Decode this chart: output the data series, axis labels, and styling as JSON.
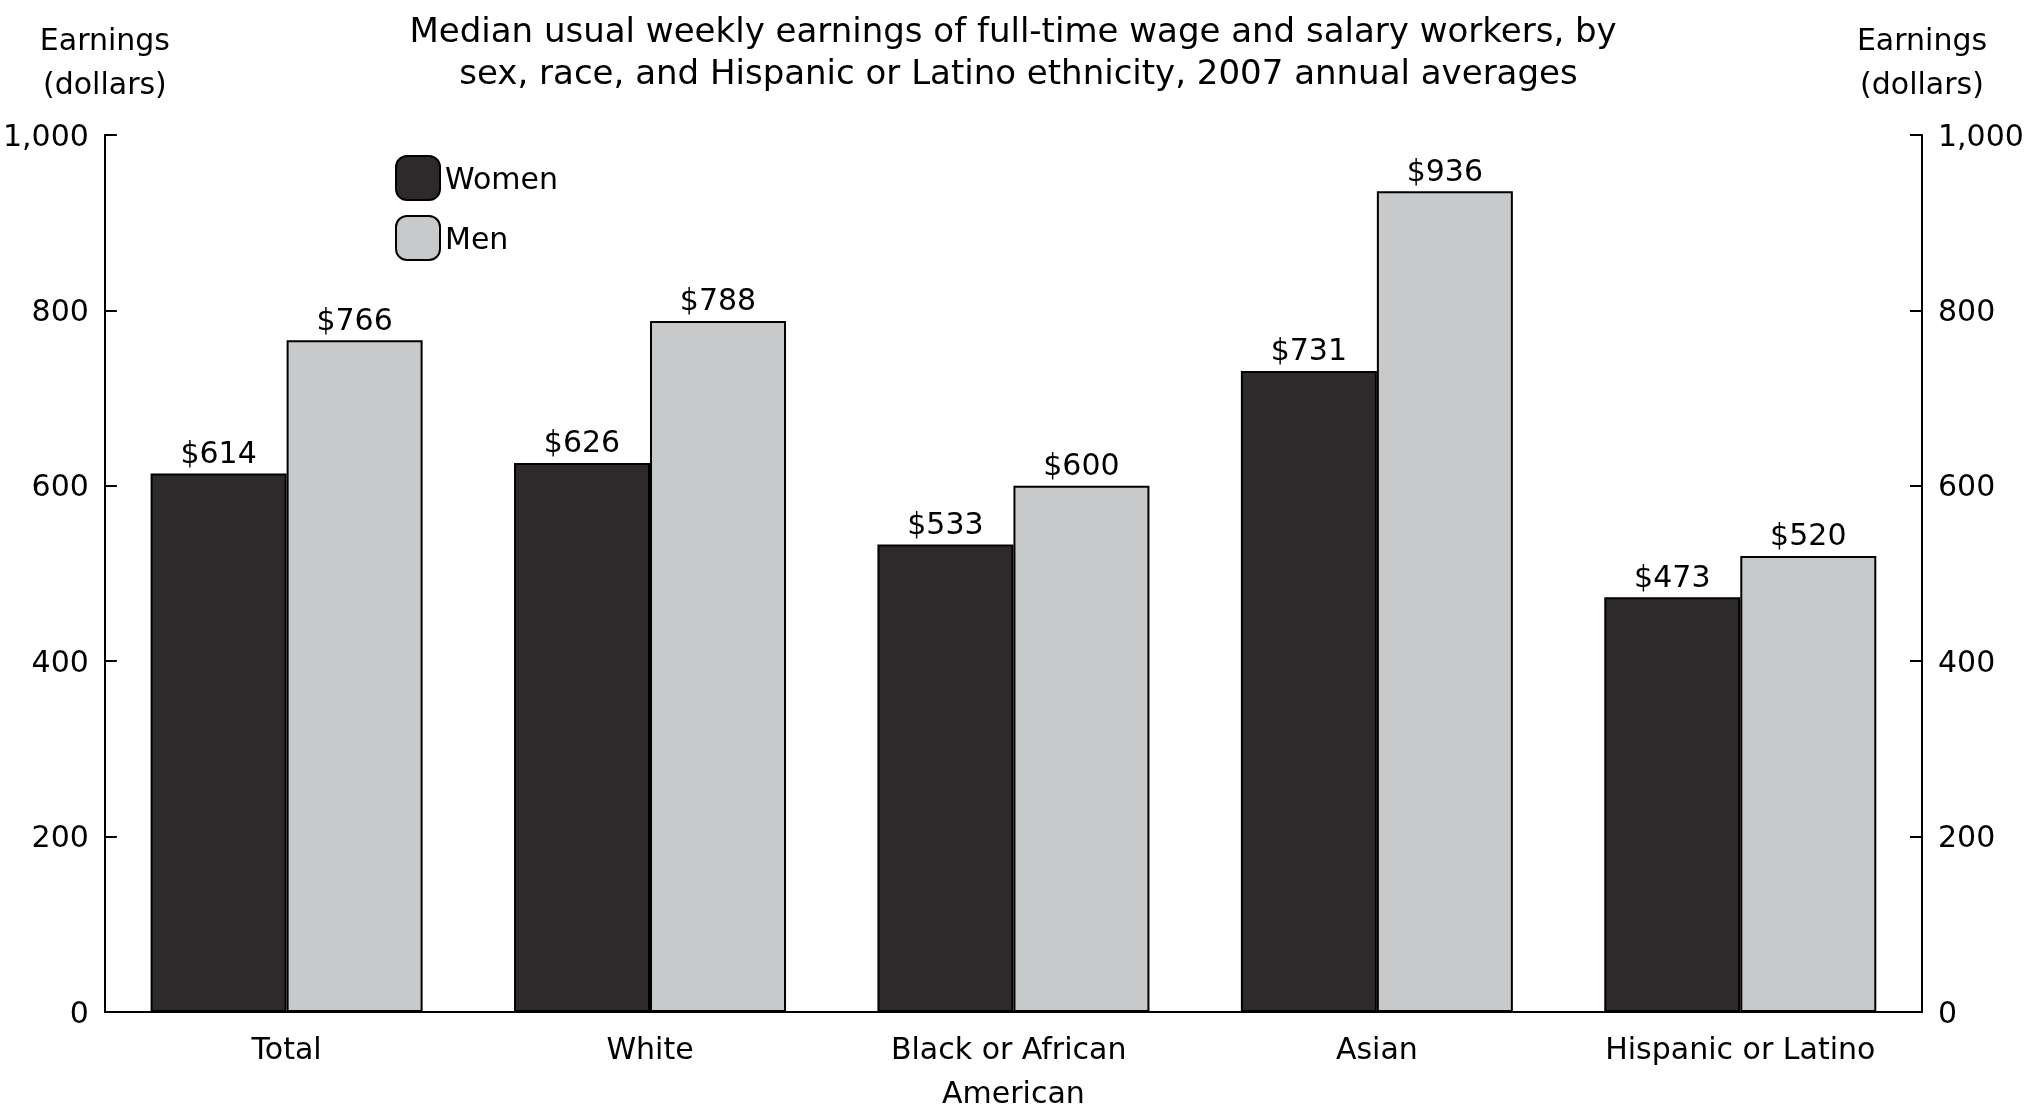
{
  "chart_data": {
    "type": "bar",
    "title": "Median usual weekly earnings of full-time wage and salary workers, by sex, race, and Hispanic or Latino ethnicity, 2007 annual averages",
    "ylabel": "Earnings\n(dollars)",
    "y2label": "Earnings\n(dollars)",
    "categories": [
      "Total",
      "White",
      "Black or African American",
      "Asian",
      "Hispanic or Latino"
    ],
    "series": [
      {
        "name": "Women",
        "color": "#2e2a2b",
        "values": [
          614,
          626,
          533,
          731,
          473
        ],
        "value_labels": [
          "$614",
          "$626",
          "$533",
          "$731",
          "$473"
        ]
      },
      {
        "name": "Men",
        "color": "#c8c9cb",
        "values": [
          766,
          788,
          600,
          936,
          520
        ],
        "value_labels": [
          "$766",
          "$788",
          "$600",
          "$936",
          "$520"
        ]
      }
    ],
    "ylim": [
      0,
      1000
    ],
    "yticks": [
      0,
      200,
      400,
      600,
      800,
      {
        "value": 1000,
        "label": "1,000"
      }
    ],
    "y2lim": [
      0,
      1000
    ],
    "y2ticks": [
      0,
      200,
      400,
      600,
      800,
      {
        "value": 1000,
        "label": "1,000"
      }
    ],
    "grid": false,
    "legend": "top left"
  }
}
